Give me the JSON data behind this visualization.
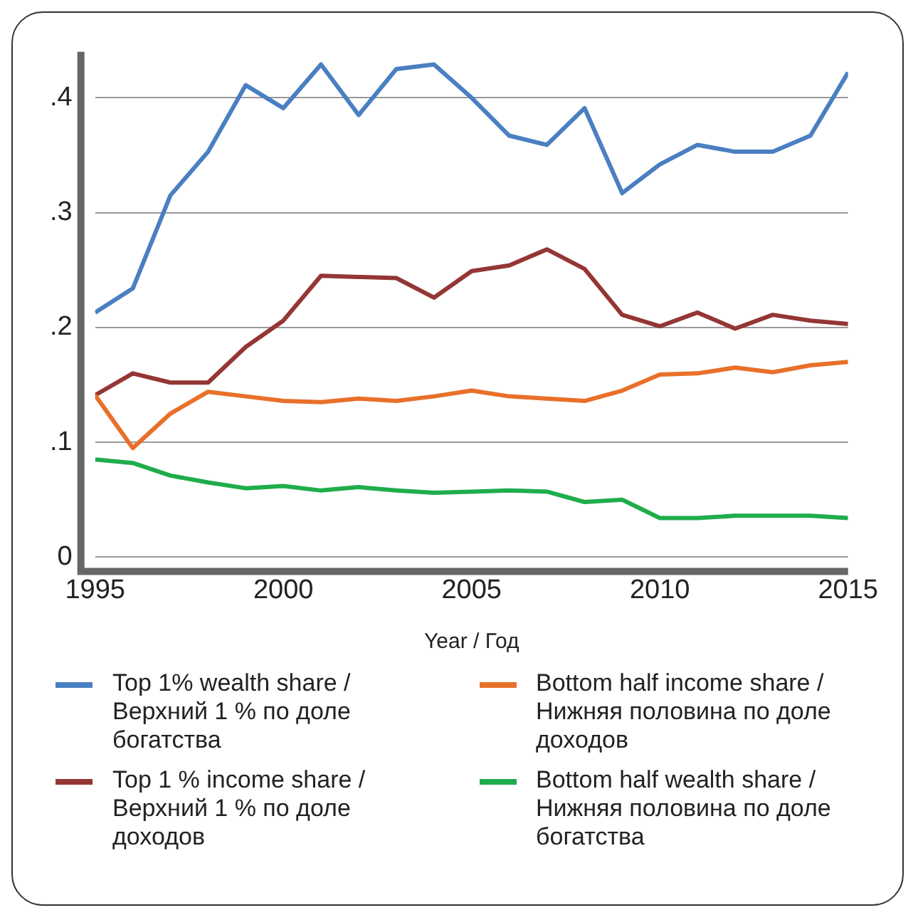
{
  "chart_data": {
    "type": "line",
    "xlabel": "Year / Год",
    "x": [
      1995,
      1996,
      1997,
      1998,
      1999,
      2000,
      2001,
      2002,
      2003,
      2004,
      2005,
      2006,
      2007,
      2008,
      2009,
      2010,
      2011,
      2012,
      2013,
      2014,
      2015
    ],
    "series": [
      {
        "name": "Top 1% wealth share / Верхний 1 % по доле богатства",
        "color": "#4a7fc1",
        "values": [
          0.213,
          0.234,
          0.315,
          0.353,
          0.411,
          0.391,
          0.429,
          0.385,
          0.425,
          0.429,
          0.4,
          0.367,
          0.359,
          0.391,
          0.317,
          0.342,
          0.359,
          0.353,
          0.353,
          0.367,
          0.422
        ]
      },
      {
        "name": "Bottom half income share / Нижняя половина по доле доходов",
        "color": "#e8702a",
        "values": [
          0.141,
          0.095,
          0.125,
          0.144,
          0.14,
          0.136,
          0.135,
          0.138,
          0.136,
          0.14,
          0.145,
          0.14,
          0.138,
          0.136,
          0.145,
          0.159,
          0.16,
          0.165,
          0.161,
          0.167,
          0.17
        ]
      },
      {
        "name": "Top 1 % income share / Верхний 1 % по доле доходов",
        "color": "#943634",
        "values": [
          0.141,
          0.16,
          0.152,
          0.152,
          0.183,
          0.206,
          0.245,
          0.244,
          0.243,
          0.226,
          0.249,
          0.254,
          0.268,
          0.251,
          0.211,
          0.201,
          0.213,
          0.199,
          0.211,
          0.206,
          0.203
        ]
      },
      {
        "name": "Bottom half wealth share / Нижняя половина по доле богатства",
        "color": "#1fad4b",
        "values": [
          0.085,
          0.082,
          0.071,
          0.065,
          0.06,
          0.062,
          0.058,
          0.061,
          0.058,
          0.056,
          0.057,
          0.058,
          0.057,
          0.048,
          0.05,
          0.034,
          0.034,
          0.036,
          0.036,
          0.036,
          0.034
        ]
      }
    ],
    "xlim": [
      1995,
      2015
    ],
    "xticks": [
      1995,
      2000,
      2005,
      2010,
      2015
    ],
    "ylim": [
      0,
      0.44
    ],
    "yticks": [
      0,
      {
        "value": 0.1,
        "label": ".1"
      },
      {
        "value": 0.2,
        "label": ".2"
      },
      {
        "value": 0.3,
        "label": ".3"
      },
      {
        "value": 0.4,
        "label": ".4"
      }
    ],
    "grid": "y",
    "legend": "bottom",
    "marker": "none",
    "line_style": "solid"
  }
}
